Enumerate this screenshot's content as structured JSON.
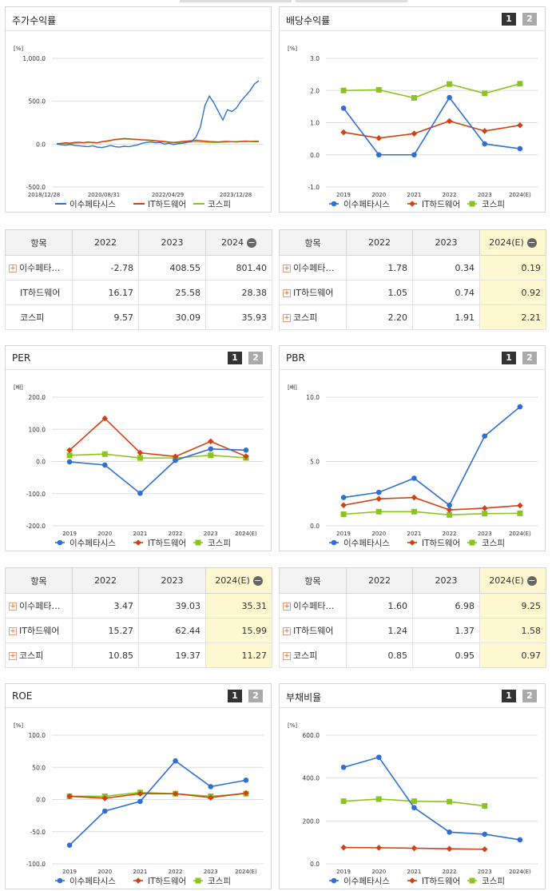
{
  "series_names": [
    "이수페타시스",
    "IT하드웨어",
    "코스피"
  ],
  "colors": {
    "s1": "#2e6fd1",
    "s2": "#d24014",
    "s3": "#8cc41f",
    "grid": "#dddddd",
    "highlight": "#fdf8cf"
  },
  "panels": {
    "stock": {
      "title": "주가수익률"
    },
    "div": {
      "title": "배당수익률",
      "btn1": "1",
      "btn2": "2"
    },
    "per": {
      "title": "PER",
      "btn1": "1",
      "btn2": "2"
    },
    "pbr": {
      "title": "PBR",
      "btn1": "1",
      "btn2": "2"
    },
    "roe": {
      "title": "ROE",
      "btn1": "1",
      "btn2": "2"
    },
    "debt": {
      "title": "부채비율",
      "btn1": "1",
      "btn2": "2"
    }
  },
  "tables": {
    "stock": {
      "header": [
        "항목",
        "2022",
        "2023",
        "2024"
      ],
      "rows": [
        {
          "name": "이수페타…",
          "plus": true,
          "values": [
            "-2.78",
            "408.55",
            "801.40"
          ]
        },
        {
          "name": "IT하드웨어",
          "plus": false,
          "values": [
            "16.17",
            "25.58",
            "28.38"
          ]
        },
        {
          "name": "코스피",
          "plus": false,
          "values": [
            "9.57",
            "30.09",
            "35.93"
          ]
        }
      ]
    },
    "div": {
      "header": [
        "항목",
        "2022",
        "2023",
        "2024(E)"
      ],
      "rows": [
        {
          "name": "이수페타…",
          "plus": true,
          "values": [
            "1.78",
            "0.34",
            "0.19"
          ]
        },
        {
          "name": "IT하드웨어",
          "plus": true,
          "values": [
            "1.05",
            "0.74",
            "0.92"
          ]
        },
        {
          "name": "코스피",
          "plus": true,
          "values": [
            "2.20",
            "1.91",
            "2.21"
          ]
        }
      ]
    },
    "per": {
      "header": [
        "항목",
        "2022",
        "2023",
        "2024(E)"
      ],
      "rows": [
        {
          "name": "이수페타…",
          "plus": true,
          "values": [
            "3.47",
            "39.03",
            "35.31"
          ]
        },
        {
          "name": "IT하드웨어",
          "plus": true,
          "values": [
            "15.27",
            "62.44",
            "15.99"
          ]
        },
        {
          "name": "코스피",
          "plus": true,
          "values": [
            "10.85",
            "19.37",
            "11.27"
          ]
        }
      ]
    },
    "pbr": {
      "header": [
        "항목",
        "2022",
        "2023",
        "2024(E)"
      ],
      "rows": [
        {
          "name": "이수페타…",
          "plus": true,
          "values": [
            "1.60",
            "6.98",
            "9.25"
          ]
        },
        {
          "name": "IT하드웨어",
          "plus": true,
          "values": [
            "1.24",
            "1.37",
            "1.58"
          ]
        },
        {
          "name": "코스피",
          "plus": true,
          "values": [
            "0.85",
            "0.95",
            "0.97"
          ]
        }
      ]
    }
  },
  "chart_data": [
    {
      "id": "stock",
      "type": "line",
      "unit": "[%]",
      "x_ticks": [
        "2018/12/28",
        "2020/08/31",
        "2022/04/29",
        "2023/12/28"
      ],
      "y_ticks": [
        "1,000.0",
        "500.0",
        "0.0",
        "-500.0"
      ],
      "ylim": [
        -500,
        1000
      ],
      "series": [
        {
          "name": "이수페타시스",
          "values": [
            0,
            -8,
            -12,
            -5,
            -15,
            -20,
            -25,
            -30,
            -20,
            -35,
            -40,
            -30,
            -15,
            -30,
            -35,
            -25,
            -30,
            -20,
            -10,
            10,
            20,
            25,
            15,
            20,
            0,
            10,
            -5,
            5,
            10,
            20,
            30,
            80,
            200,
            450,
            560,
            480,
            380,
            280,
            400,
            380,
            420,
            500,
            560,
            620,
            700,
            740
          ]
        },
        {
          "name": "IT하드웨어",
          "values": [
            5,
            10,
            15,
            12,
            20,
            22,
            18,
            25,
            20,
            15,
            28,
            35,
            45,
            55,
            60,
            65,
            62,
            58,
            55,
            50,
            48,
            45,
            40,
            35,
            30,
            25,
            20,
            25,
            30,
            35,
            40,
            45,
            40,
            35,
            30,
            28,
            25,
            30,
            32,
            28,
            25,
            30,
            35,
            30,
            28,
            30
          ]
        },
        {
          "name": "코스피",
          "values": [
            2,
            5,
            8,
            4,
            10,
            15,
            12,
            20,
            18,
            15,
            25,
            30,
            40,
            50,
            55,
            60,
            58,
            55,
            52,
            48,
            45,
            40,
            35,
            30,
            25,
            20,
            15,
            18,
            20,
            22,
            25,
            28,
            25,
            22,
            20,
            18,
            20,
            22,
            25,
            28,
            30,
            32,
            30,
            32,
            35,
            36
          ]
        }
      ]
    },
    {
      "id": "div",
      "type": "line",
      "unit": "[%]",
      "categories": [
        "2019",
        "2020",
        "2021",
        "2022",
        "2023",
        "2024(E)"
      ],
      "y_ticks": [
        "3.0",
        "2.0",
        "1.0",
        "0.0",
        "-1.0"
      ],
      "ylim": [
        -1,
        3
      ],
      "series": [
        {
          "name": "이수페타시스",
          "values": [
            1.45,
            0.0,
            0.0,
            1.78,
            0.34,
            0.19
          ]
        },
        {
          "name": "IT하드웨어",
          "values": [
            0.7,
            0.52,
            0.66,
            1.05,
            0.74,
            0.92
          ]
        },
        {
          "name": "코스피",
          "values": [
            2.0,
            2.02,
            1.77,
            2.2,
            1.91,
            2.21
          ]
        }
      ]
    },
    {
      "id": "per",
      "type": "line",
      "unit": "[배]",
      "categories": [
        "2019",
        "2020",
        "2021",
        "2022",
        "2023",
        "2024(E)"
      ],
      "y_ticks": [
        "200.0",
        "100.0",
        "0.0",
        "-100.0",
        "-200.0"
      ],
      "ylim": [
        -200,
        200
      ],
      "series": [
        {
          "name": "이수페타시스",
          "values": [
            -1,
            -11,
            -99,
            3.47,
            39.03,
            35.31
          ]
        },
        {
          "name": "IT하드웨어",
          "values": [
            35,
            134,
            27,
            15.27,
            62.44,
            15.99
          ]
        },
        {
          "name": "코스피",
          "values": [
            19,
            23,
            11,
            10.85,
            19.37,
            11.27
          ]
        }
      ]
    },
    {
      "id": "pbr",
      "type": "line",
      "unit": "[배]",
      "categories": [
        "2019",
        "2020",
        "2021",
        "2022",
        "2023",
        "2024(E)"
      ],
      "y_ticks": [
        "10.0",
        "5.0",
        "0.0"
      ],
      "ylim": [
        0,
        10
      ],
      "series": [
        {
          "name": "이수페타시스",
          "values": [
            2.2,
            2.6,
            3.7,
            1.6,
            6.98,
            9.25
          ]
        },
        {
          "name": "IT하드웨어",
          "values": [
            1.6,
            2.1,
            2.2,
            1.24,
            1.37,
            1.58
          ]
        },
        {
          "name": "코스피",
          "values": [
            0.9,
            1.1,
            1.1,
            0.85,
            0.95,
            0.97
          ]
        }
      ]
    },
    {
      "id": "roe",
      "type": "line",
      "unit": "[%]",
      "categories": [
        "2019",
        "2020",
        "2021",
        "2022",
        "2023",
        "2024(E)"
      ],
      "y_ticks": [
        "100.0",
        "50.0",
        "0.0",
        "-50.0",
        "-100.0"
      ],
      "ylim": [
        -100,
        100
      ],
      "series": [
        {
          "name": "이수페타시스",
          "values": [
            -71,
            -18,
            -3,
            60,
            20,
            30
          ]
        },
        {
          "name": "IT하드웨어",
          "values": [
            5,
            2,
            9,
            9,
            3,
            10
          ]
        },
        {
          "name": "코스피",
          "values": [
            5,
            5,
            11,
            9,
            5,
            9
          ]
        }
      ]
    },
    {
      "id": "debt",
      "type": "line",
      "unit": "[%]",
      "categories": [
        "2019",
        "2020",
        "2021",
        "2022",
        "2023",
        "2024(E)"
      ],
      "y_ticks": [
        "600.0",
        "400.0",
        "200.0",
        "0.0"
      ],
      "ylim": [
        0,
        600
      ],
      "series": [
        {
          "name": "이수페타시스",
          "values": [
            450,
            497,
            262,
            148,
            138,
            112
          ]
        },
        {
          "name": "IT하드웨어",
          "values": [
            76,
            75,
            73,
            70,
            68,
            null
          ]
        },
        {
          "name": "코스피",
          "values": [
            292,
            302,
            292,
            290,
            270,
            null
          ]
        }
      ]
    }
  ]
}
